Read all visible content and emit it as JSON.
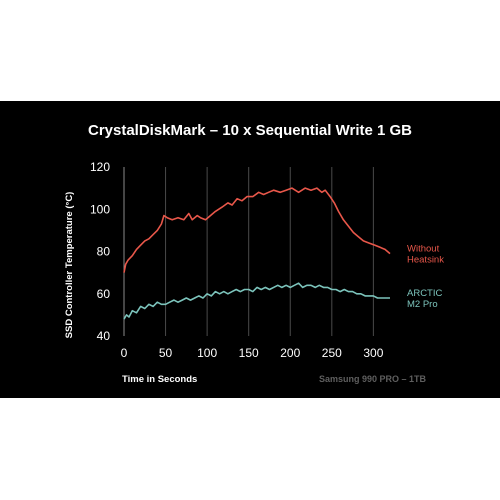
{
  "chart_data": {
    "type": "line",
    "title": "CrystalDiskMark – 10 x Sequential Write 1 GB",
    "xlabel": "Time in Seconds",
    "ylabel": "SSD Controller Temperature (°C)",
    "source_note": "Samsung 990 PRO – 1TB",
    "xlim": [
      0,
      320
    ],
    "ylim": [
      40,
      120
    ],
    "x_ticks": [
      0,
      50,
      100,
      150,
      200,
      250,
      300
    ],
    "y_ticks": [
      40,
      60,
      80,
      100,
      120
    ],
    "grid": "vertical",
    "legend": "right, inline labels at series ends",
    "series": [
      {
        "name": "Without Heatsink",
        "label_lines": [
          "Without",
          "Heatsink"
        ],
        "color": "#e8574a",
        "points": [
          [
            0,
            70
          ],
          [
            2,
            74
          ],
          [
            5,
            76
          ],
          [
            10,
            78
          ],
          [
            15,
            81
          ],
          [
            20,
            83
          ],
          [
            25,
            85
          ],
          [
            30,
            86
          ],
          [
            35,
            88
          ],
          [
            40,
            90
          ],
          [
            45,
            93
          ],
          [
            48,
            97
          ],
          [
            52,
            96
          ],
          [
            58,
            95
          ],
          [
            65,
            96
          ],
          [
            72,
            95
          ],
          [
            78,
            98
          ],
          [
            82,
            95
          ],
          [
            88,
            97
          ],
          [
            92,
            96
          ],
          [
            98,
            95
          ],
          [
            104,
            97
          ],
          [
            110,
            99
          ],
          [
            118,
            101
          ],
          [
            125,
            103
          ],
          [
            130,
            102
          ],
          [
            136,
            105
          ],
          [
            142,
            104
          ],
          [
            148,
            106
          ],
          [
            155,
            106
          ],
          [
            162,
            108
          ],
          [
            168,
            107
          ],
          [
            174,
            108
          ],
          [
            180,
            109
          ],
          [
            188,
            108
          ],
          [
            195,
            109
          ],
          [
            202,
            110
          ],
          [
            210,
            108
          ],
          [
            218,
            110
          ],
          [
            225,
            109
          ],
          [
            232,
            110
          ],
          [
            238,
            108
          ],
          [
            242,
            109
          ],
          [
            248,
            106
          ],
          [
            253,
            103
          ],
          [
            258,
            99
          ],
          [
            264,
            95
          ],
          [
            270,
            92
          ],
          [
            276,
            89
          ],
          [
            282,
            87
          ],
          [
            288,
            85
          ],
          [
            295,
            84
          ],
          [
            302,
            83
          ],
          [
            308,
            82
          ],
          [
            314,
            81
          ],
          [
            320,
            79
          ]
        ]
      },
      {
        "name": "ARCTIC M2 Pro",
        "label_lines": [
          "ARCTIC",
          "M2 Pro"
        ],
        "color": "#7cc4bc",
        "points": [
          [
            0,
            48
          ],
          [
            3,
            50
          ],
          [
            6,
            49
          ],
          [
            10,
            52
          ],
          [
            15,
            51
          ],
          [
            20,
            54
          ],
          [
            25,
            53
          ],
          [
            30,
            55
          ],
          [
            35,
            54
          ],
          [
            40,
            56
          ],
          [
            45,
            55
          ],
          [
            50,
            55
          ],
          [
            55,
            56
          ],
          [
            60,
            57
          ],
          [
            65,
            56
          ],
          [
            70,
            57
          ],
          [
            75,
            58
          ],
          [
            80,
            57
          ],
          [
            85,
            58
          ],
          [
            90,
            59
          ],
          [
            95,
            58
          ],
          [
            100,
            60
          ],
          [
            105,
            59
          ],
          [
            110,
            61
          ],
          [
            115,
            60
          ],
          [
            120,
            61
          ],
          [
            125,
            60
          ],
          [
            130,
            61
          ],
          [
            135,
            62
          ],
          [
            140,
            61
          ],
          [
            145,
            62
          ],
          [
            150,
            62
          ],
          [
            155,
            61
          ],
          [
            160,
            63
          ],
          [
            165,
            62
          ],
          [
            170,
            63
          ],
          [
            175,
            62
          ],
          [
            180,
            63
          ],
          [
            185,
            64
          ],
          [
            190,
            63
          ],
          [
            195,
            64
          ],
          [
            200,
            63
          ],
          [
            205,
            64
          ],
          [
            210,
            65
          ],
          [
            215,
            63
          ],
          [
            220,
            64
          ],
          [
            225,
            64
          ],
          [
            230,
            63
          ],
          [
            235,
            64
          ],
          [
            240,
            63
          ],
          [
            245,
            63
          ],
          [
            250,
            62
          ],
          [
            255,
            62
          ],
          [
            260,
            61
          ],
          [
            265,
            62
          ],
          [
            270,
            61
          ],
          [
            275,
            61
          ],
          [
            280,
            60
          ],
          [
            285,
            60
          ],
          [
            290,
            59
          ],
          [
            295,
            59
          ],
          [
            300,
            59
          ],
          [
            305,
            58
          ],
          [
            310,
            58
          ],
          [
            315,
            58
          ],
          [
            320,
            58
          ]
        ]
      }
    ]
  }
}
